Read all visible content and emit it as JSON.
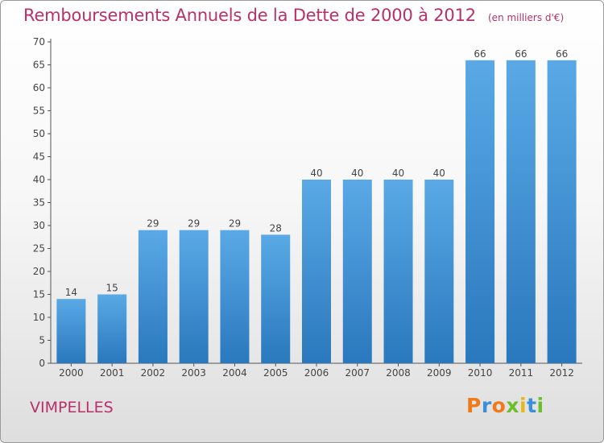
{
  "header": {
    "title": "Remboursements Annuels de la Dette de 2000 à 2012",
    "unit": "(en milliers d'€)"
  },
  "footer": {
    "commune": "VIMPELLES",
    "logo_text": "Proxiti",
    "logo_letter_colors": [
      "#f07a1a",
      "#3a8fd9",
      "#f07a1a",
      "#6abf2a",
      "#e8b81a",
      "#3a8fd9",
      "#6abf2a"
    ]
  },
  "colors": {
    "bar_light": "#5aa9e6",
    "bar_dark": "#2a78bd",
    "title": "#b8306a",
    "axis": "#444444"
  },
  "chart_data": {
    "type": "bar",
    "categories": [
      "2000",
      "2001",
      "2002",
      "2003",
      "2004",
      "2005",
      "2006",
      "2007",
      "2008",
      "2009",
      "2010",
      "2011",
      "2012"
    ],
    "values": [
      14,
      15,
      29,
      29,
      29,
      28,
      40,
      40,
      40,
      40,
      66,
      66,
      66
    ],
    "data_labels": [
      "14",
      "15",
      "29",
      "29",
      "29",
      "28",
      "40",
      "40",
      "40",
      "40",
      "66",
      "66",
      "66"
    ],
    "yticks": [
      0,
      5,
      10,
      15,
      20,
      25,
      30,
      35,
      40,
      45,
      50,
      55,
      60,
      65,
      70
    ],
    "ylim": [
      0,
      70
    ],
    "grid": false,
    "legend": "none"
  }
}
